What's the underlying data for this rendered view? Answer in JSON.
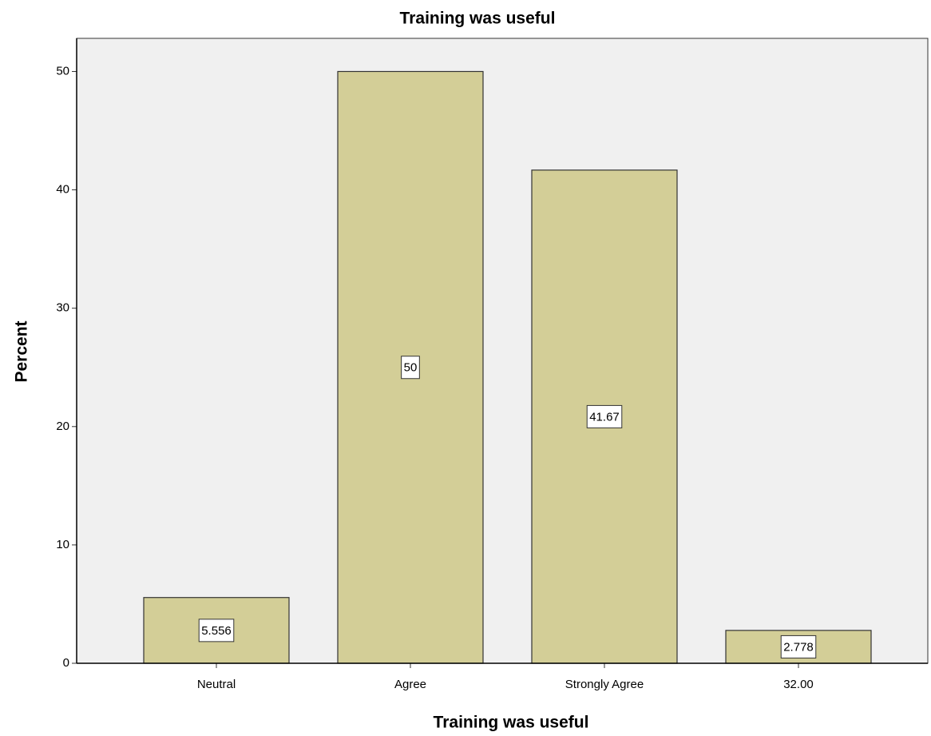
{
  "chart_data": {
    "type": "bar",
    "title": "Training was useful",
    "x_label": "Training was useful",
    "y_label": "Percent",
    "categories": [
      "Neutral",
      "Agree",
      "Strongly Agree",
      "32.00"
    ],
    "values": [
      5.556,
      50,
      41.67,
      2.778
    ],
    "color": "#d3ce97",
    "ylim": [
      0,
      52.8
    ],
    "yticks": [
      0,
      10,
      20,
      30,
      40,
      50
    ],
    "grid": false
  }
}
